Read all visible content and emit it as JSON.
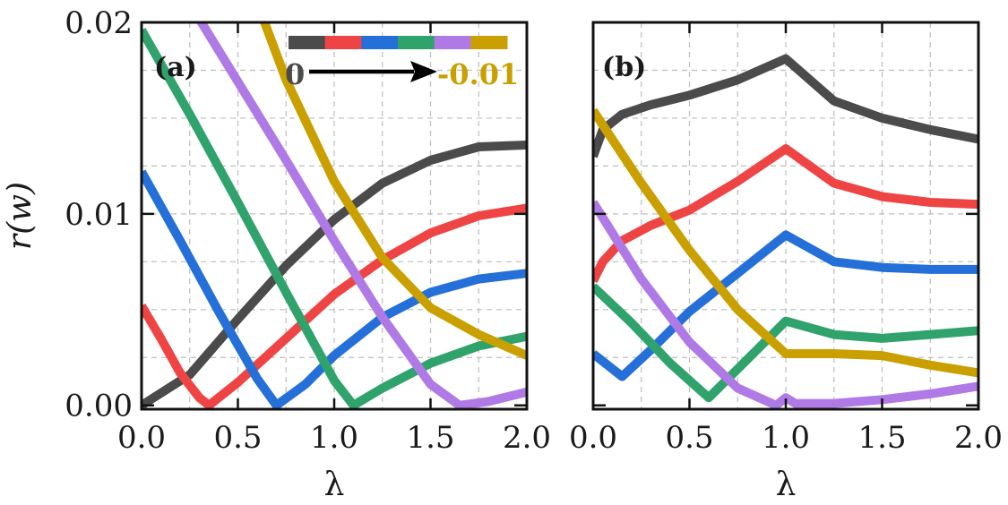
{
  "chart_data": [
    {
      "type": "line",
      "panel_label": "(a)",
      "xlabel": "λ",
      "ylabel": "r(w)",
      "xlim": [
        0,
        2
      ],
      "ylim": [
        -0.0002,
        0.02
      ],
      "x_ticks": [
        "0.0",
        "0.5",
        "1.0",
        "1.5",
        "2.0"
      ],
      "y_ticks": [
        "0.00",
        "0.01",
        "0.02"
      ],
      "grid": true,
      "legend": {
        "placement": "top-right",
        "start_label": "0",
        "end_label": "-0.01",
        "colors": [
          "#4b4b4b",
          "#ef4444",
          "#2470d8",
          "#2fa36b",
          "#b07ae6",
          "#c9a000"
        ]
      },
      "series": [
        {
          "color": "#4b4b4b",
          "x": [
            0,
            0.25,
            0.5,
            0.75,
            1.0,
            1.25,
            1.5,
            1.75,
            2.0
          ],
          "y": [
            0.0,
            0.0016,
            0.0045,
            0.0073,
            0.0097,
            0.0116,
            0.0128,
            0.0135,
            0.0136
          ]
        },
        {
          "color": "#ef4444",
          "x": [
            0,
            0.1,
            0.2,
            0.3,
            0.35,
            0.5,
            0.75,
            1.0,
            1.25,
            1.5,
            1.75,
            2.0
          ],
          "y": [
            0.0052,
            0.0035,
            0.0017,
            0.0004,
            0.0,
            0.0012,
            0.0035,
            0.0058,
            0.0076,
            0.009,
            0.0099,
            0.0103
          ]
        },
        {
          "color": "#2470d8",
          "x": [
            0,
            0.2,
            0.4,
            0.6,
            0.7,
            0.85,
            1.0,
            1.25,
            1.5,
            1.75,
            2.0
          ],
          "y": [
            0.0122,
            0.0086,
            0.0049,
            0.0014,
            0.0,
            0.0011,
            0.0026,
            0.0046,
            0.0059,
            0.0066,
            0.0069
          ]
        },
        {
          "color": "#2fa36b",
          "x": [
            0,
            0.25,
            0.5,
            0.75,
            1.0,
            1.1,
            1.25,
            1.5,
            1.75,
            2.0
          ],
          "y": [
            0.0196,
            0.0152,
            0.0106,
            0.0059,
            0.0013,
            0.0,
            0.0009,
            0.0022,
            0.0031,
            0.0036
          ]
        },
        {
          "color": "#b07ae6",
          "x": [
            0.28,
            0.5,
            0.75,
            1.0,
            1.25,
            1.5,
            1.65,
            1.8,
            2.0
          ],
          "y": [
            0.0205,
            0.0169,
            0.0128,
            0.0086,
            0.0046,
            0.0011,
            0.0,
            0.0002,
            0.0007
          ]
        },
        {
          "color": "#c9a000",
          "x": [
            0.62,
            0.75,
            1.0,
            1.25,
            1.5,
            1.75,
            2.0
          ],
          "y": [
            0.0205,
            0.017,
            0.0117,
            0.0077,
            0.0051,
            0.0037,
            0.0026
          ]
        }
      ]
    },
    {
      "type": "line",
      "panel_label": "(b)",
      "xlabel": "λ",
      "ylabel": "",
      "xlim": [
        0,
        2
      ],
      "ylim": [
        -0.0002,
        0.02
      ],
      "x_ticks": [
        "0.0",
        "0.5",
        "1.0",
        "1.5",
        "2.0"
      ],
      "y_ticks": [],
      "grid": true,
      "series": [
        {
          "color": "#4b4b4b",
          "x": [
            0,
            0.05,
            0.15,
            0.3,
            0.5,
            0.75,
            1.0,
            1.25,
            1.5,
            1.75,
            2.0
          ],
          "y": [
            0.013,
            0.0144,
            0.0152,
            0.0157,
            0.0162,
            0.017,
            0.0181,
            0.0159,
            0.015,
            0.0144,
            0.0139
          ]
        },
        {
          "color": "#ef4444",
          "x": [
            0,
            0.05,
            0.15,
            0.3,
            0.5,
            0.75,
            1.0,
            1.25,
            1.5,
            1.75,
            2.0
          ],
          "y": [
            0.0065,
            0.0075,
            0.0086,
            0.0094,
            0.0102,
            0.0117,
            0.0134,
            0.0116,
            0.0109,
            0.0106,
            0.0105
          ]
        },
        {
          "color": "#2470d8",
          "x": [
            0,
            0.15,
            0.3,
            0.5,
            0.75,
            1.0,
            1.25,
            1.5,
            1.75,
            2.0
          ],
          "y": [
            0.0027,
            0.0015,
            0.0029,
            0.0049,
            0.0069,
            0.0089,
            0.0075,
            0.0072,
            0.0071,
            0.0071
          ]
        },
        {
          "color": "#2fa36b",
          "x": [
            0,
            0.2,
            0.4,
            0.6,
            0.8,
            1.0,
            1.25,
            1.5,
            1.75,
            2.0
          ],
          "y": [
            0.0062,
            0.0043,
            0.0022,
            0.0004,
            0.0024,
            0.0044,
            0.0037,
            0.0035,
            0.0037,
            0.0039
          ]
        },
        {
          "color": "#b07ae6",
          "x": [
            0,
            0.25,
            0.5,
            0.75,
            0.95,
            1.0,
            1.05,
            1.25,
            1.5,
            1.75,
            2.0
          ],
          "y": [
            0.0106,
            0.0066,
            0.0033,
            0.0009,
            0.0,
            0.0004,
            0.0001,
            0.0001,
            0.0003,
            0.0006,
            0.001
          ]
        },
        {
          "color": "#c9a000",
          "x": [
            0,
            0.25,
            0.5,
            0.75,
            1.0,
            1.25,
            1.5,
            1.75,
            2.0
          ],
          "y": [
            0.0154,
            0.0116,
            0.0081,
            0.005,
            0.0027,
            0.0027,
            0.0026,
            0.0021,
            0.0017
          ]
        }
      ]
    }
  ]
}
